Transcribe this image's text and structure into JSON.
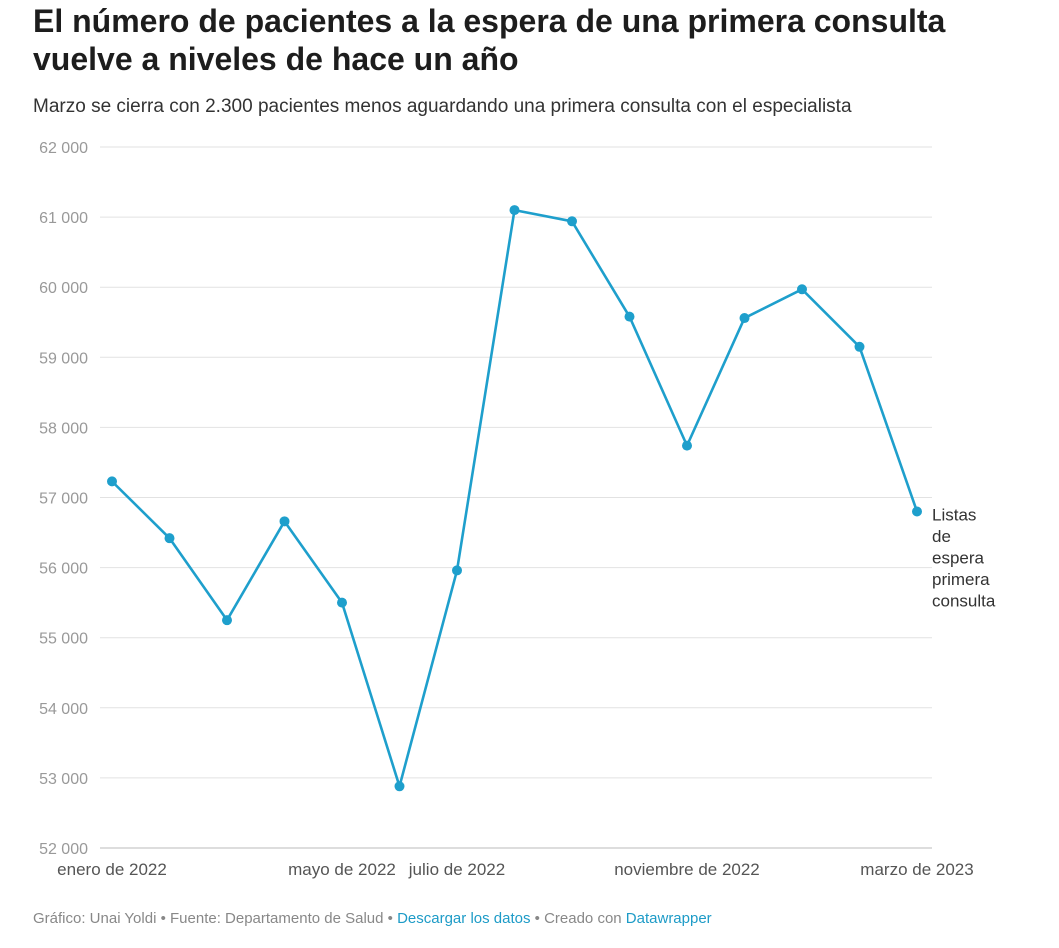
{
  "header": {
    "title": "El número de pacientes a la espera de una primera consulta vuelve a niveles de hace un año",
    "subtitle": "Marzo se cierra con 2.300 pacientes menos aguardando una primera consulta con el especialista"
  },
  "footer": {
    "credit": "Gráfico: Unai Yoldi",
    "sep1": " • ",
    "source": "Fuente: Departamento de Salud",
    "sep2": " • ",
    "download_link": "Descargar los datos",
    "sep3": " • ",
    "created_with": "Creado con ",
    "datawrapper_link": "Datawrapper"
  },
  "colors": {
    "line": "#1e9fcc",
    "grid": "#e2e2e2",
    "link": "#1d9bc7"
  },
  "chart_data": {
    "type": "line",
    "title": "El número de pacientes a la espera de una primera consulta vuelve a niveles de hace un año",
    "subtitle": "Marzo se cierra con 2.300 pacientes menos aguardando una primera consulta con el especialista",
    "x": [
      "2022-01",
      "2022-02",
      "2022-03",
      "2022-04",
      "2022-05",
      "2022-06",
      "2022-07",
      "2022-08",
      "2022-09",
      "2022-10",
      "2022-11",
      "2022-12",
      "2023-01",
      "2023-02",
      "2023-03"
    ],
    "x_tick_labels": [
      {
        "x": "2022-01",
        "label": "enero de 2022"
      },
      {
        "x": "2022-05",
        "label": "mayo de 2022"
      },
      {
        "x": "2022-07",
        "label": "julio de 2022"
      },
      {
        "x": "2022-11",
        "label": "noviembre de 2022"
      },
      {
        "x": "2023-03",
        "label": "marzo de 2023"
      }
    ],
    "y_ticks": [
      52000,
      53000,
      54000,
      55000,
      56000,
      57000,
      58000,
      59000,
      60000,
      61000,
      62000
    ],
    "y_tick_labels": [
      "52 000",
      "53 000",
      "54 000",
      "55 000",
      "56 000",
      "57 000",
      "58 000",
      "59 000",
      "60 000",
      "61 000",
      "62 000"
    ],
    "ylim": [
      52000,
      62000
    ],
    "grid": true,
    "series": [
      {
        "name": "Listas de espera primera consulta",
        "label_lines": [
          "Listas",
          "de",
          "espera",
          "primera",
          "consulta"
        ],
        "values": [
          57230,
          56420,
          55250,
          56660,
          55500,
          52880,
          55960,
          61100,
          60940,
          59580,
          57740,
          59560,
          59970,
          59150,
          56800
        ]
      }
    ]
  }
}
